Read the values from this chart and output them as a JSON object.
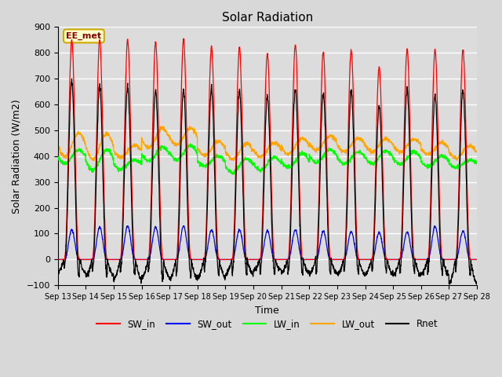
{
  "title": "Solar Radiation",
  "xlabel": "Time",
  "ylabel": "Solar Radiation (W/m2)",
  "ylim": [
    -100,
    900
  ],
  "fig_bg_color": "#d8d8d8",
  "plot_bg_color": "#dcdcdc",
  "grid_color": "white",
  "annotation_text": "EE_met",
  "annotation_bg": "#ffffcc",
  "annotation_border": "#ccaa00",
  "colors": {
    "SW_in": "red",
    "SW_out": "blue",
    "LW_in": "#00ff00",
    "LW_out": "orange",
    "Rnet": "black"
  },
  "legend_labels": [
    "SW_in",
    "SW_out",
    "LW_in",
    "LW_out",
    "Rnet"
  ],
  "tick_labels": [
    "Sep 13",
    "Sep 14",
    "Sep 15",
    "Sep 16",
    "Sep 17",
    "Sep 18",
    "Sep 19",
    "Sep 20",
    "Sep 21",
    "Sep 22",
    "Sep 23",
    "Sep 24",
    "Sep 25",
    "Sep 26",
    "Sep 27",
    "Sep 28"
  ],
  "n_days": 15,
  "pts_per_day": 144,
  "SW_in_peak": [
    850,
    850,
    850,
    840,
    850,
    820,
    820,
    795,
    830,
    800,
    810,
    745,
    810,
    810,
    810
  ],
  "SW_out_peak": [
    115,
    125,
    130,
    125,
    128,
    115,
    115,
    110,
    115,
    110,
    108,
    105,
    105,
    128,
    110
  ],
  "LW_in_base": [
    370,
    345,
    350,
    380,
    385,
    360,
    335,
    345,
    355,
    375,
    370,
    370,
    368,
    360,
    355
  ],
  "LW_out_base": [
    398,
    387,
    397,
    432,
    442,
    402,
    387,
    397,
    407,
    422,
    417,
    417,
    416,
    407,
    392
  ],
  "LW_in_noon_bump": [
    55,
    80,
    35,
    55,
    55,
    40,
    55,
    50,
    55,
    50,
    45,
    50,
    47,
    40,
    30
  ],
  "LW_out_noon_bump": [
    90,
    100,
    45,
    75,
    65,
    55,
    60,
    55,
    60,
    55,
    50,
    50,
    50,
    45,
    48
  ],
  "Rnet_night": [
    -50,
    -60,
    -75,
    -70,
    -75,
    -70,
    -55,
    -40,
    -50,
    -55,
    -60,
    -55,
    -60,
    -55,
    -90
  ]
}
